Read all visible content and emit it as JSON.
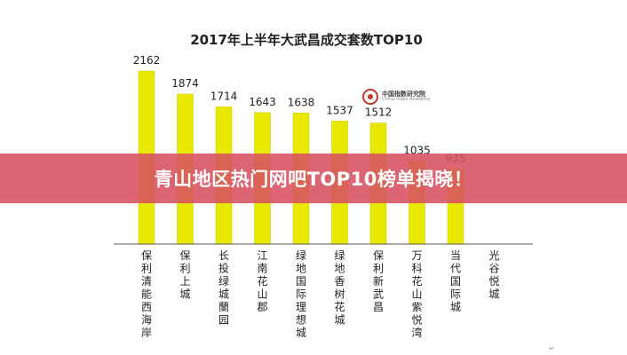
{
  "banner": {
    "text": "青山地区热门网吧TOP10榜单揭晓！"
  },
  "logo": {
    "name_cn": "中国指数研究院",
    "name_en": "China Index Academy"
  },
  "corner_mark": "↵",
  "colors": {
    "bar": "#e8e800",
    "bar_edge": "#c9c900",
    "banner": "#d65060",
    "axis": "#555555"
  },
  "chart_data": {
    "type": "bar",
    "title": "2017年上半年大武昌成交套数TOP10",
    "categories": [
      "保利清能西海岸",
      "保利上城",
      "长投绿城蘭园",
      "江南花山郡",
      "绿地国际理想城",
      "绿地香树花城",
      "保利新武昌",
      "万科花山紫悦湾",
      "当代国际城",
      "光谷悦城"
    ],
    "values": [
      2162,
      1874,
      1714,
      1643,
      1638,
      1537,
      1512,
      1035,
      935,
      null
    ],
    "value_labels": [
      "2162",
      "1874",
      "1714",
      "1643",
      "1638",
      "1537",
      "1512",
      "1035",
      "935",
      ""
    ],
    "ylim": [
      0,
      2162
    ],
    "grid": false,
    "legend": "none",
    "xlabel": "",
    "ylabel": ""
  }
}
